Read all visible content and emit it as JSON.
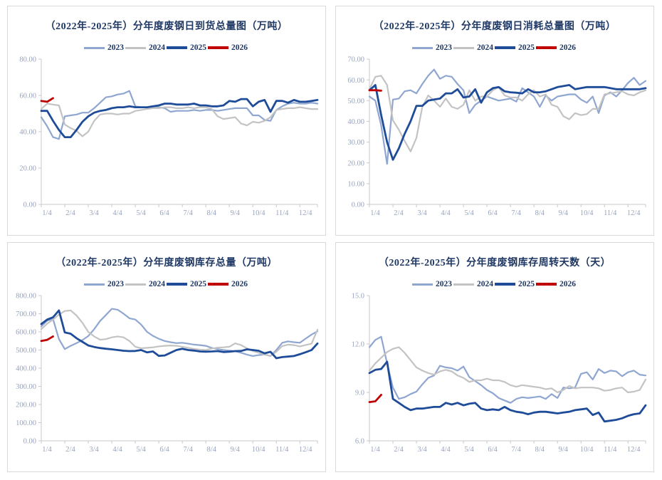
{
  "palette": {
    "title_text": "#1F3864",
    "axis_text": "#97A3BC",
    "axis_line": "#C9C9C9",
    "panel_border": "#D9D9D9",
    "series_2023": "#8FA6D1",
    "series_2024": "#C3C3C3",
    "series_2025": "#1F4C99",
    "series_2026": "#C00000"
  },
  "chart_data": [
    {
      "type": "line",
      "title": "（2022年-2025年）分年度废钢日到货总量图（万吨）",
      "xlabel": "",
      "ylabel": "",
      "x_tick_labels": [
        "1/4",
        "2/4",
        "3/4",
        "4/4",
        "5/4",
        "6/4",
        "7/4",
        "8/4",
        "9/4",
        "10/4",
        "11/4",
        "12/4"
      ],
      "points_per_month": 4,
      "ylim": [
        0,
        80
      ],
      "yticks": [
        0,
        20,
        40,
        60,
        80
      ],
      "tick_decimals": 2,
      "grid": false,
      "legend_position": "top",
      "series": [
        {
          "name": "2023",
          "color": "#8FA6D1",
          "width": 2.2,
          "values": [
            48,
            43,
            37,
            36,
            48.5,
            49,
            49.5,
            50.5,
            50.5,
            53,
            56,
            59,
            59.5,
            60.5,
            61,
            62.5,
            54,
            53.5,
            53.5,
            53.5,
            53.5,
            53,
            51,
            51.5,
            51.5,
            51.5,
            52,
            51.5,
            52,
            52,
            51.5,
            52,
            52.5,
            53,
            53,
            53,
            49,
            49,
            46.5,
            46,
            52,
            54,
            55.5,
            56,
            55.5,
            55.5,
            56,
            55.5
          ]
        },
        {
          "name": "2024",
          "color": "#C3C3C3",
          "width": 2.2,
          "values": [
            52.5,
            55.5,
            55,
            54.5,
            44,
            42,
            40.5,
            37.5,
            40,
            46,
            49.5,
            50,
            50,
            49.5,
            50,
            50,
            51.5,
            52,
            52.5,
            53,
            53,
            53.5,
            53.5,
            53,
            53,
            53.5,
            53,
            53.5,
            53.5,
            52.5,
            48.5,
            47,
            47.5,
            48,
            44.5,
            43.5,
            45.5,
            45,
            46,
            48,
            52,
            52.5,
            53,
            53,
            53.5,
            53,
            52.5,
            52.5
          ]
        },
        {
          "name": "2025",
          "color": "#1F4C99",
          "width": 2.8,
          "values": [
            51.5,
            51.5,
            46,
            41,
            37,
            37,
            41,
            45.5,
            48.5,
            50.5,
            51.5,
            52,
            53,
            53.5,
            53.5,
            54,
            53.5,
            53.5,
            53.5,
            54,
            54.5,
            55.5,
            55.5,
            55,
            55,
            55,
            55.5,
            54.5,
            54.5,
            54,
            54,
            54.5,
            57,
            56.5,
            58,
            58,
            54,
            56.5,
            57.5,
            51,
            57,
            57,
            56,
            57.5,
            56.5,
            56.5,
            57,
            57.5
          ]
        },
        {
          "name": "2026",
          "color": "#C00000",
          "width": 2.8,
          "values": [
            57,
            56.5,
            58.5
          ]
        }
      ]
    },
    {
      "type": "line",
      "title": "（2022年-2025年）分年度废钢日消耗总量图（万吨）",
      "xlabel": "",
      "ylabel": "",
      "x_tick_labels": [
        "1/4",
        "2/4",
        "3/4",
        "4/4",
        "5/4",
        "6/4",
        "7/4",
        "8/4",
        "9/4",
        "10/4",
        "11/4",
        "12/4"
      ],
      "points_per_month": 4,
      "ylim": [
        0,
        70
      ],
      "yticks": [
        0,
        10,
        20,
        30,
        40,
        50,
        60,
        70
      ],
      "tick_decimals": 2,
      "grid": false,
      "legend_position": "top",
      "series": [
        {
          "name": "2023",
          "color": "#8FA6D1",
          "width": 2.2,
          "values": [
            52,
            50,
            38,
            19.5,
            50.5,
            51,
            54.5,
            55,
            53.5,
            58,
            62,
            65,
            60.5,
            62,
            61.5,
            58,
            55,
            44,
            48,
            50,
            52,
            51,
            50,
            50.5,
            51,
            49.5,
            56,
            54,
            52,
            47,
            52.5,
            50,
            52,
            52.5,
            53,
            53,
            50.5,
            49,
            52,
            44,
            52.5,
            54,
            52,
            55,
            58.5,
            61,
            57.5,
            59.5
          ]
        },
        {
          "name": "2024",
          "color": "#C3C3C3",
          "width": 2.2,
          "values": [
            55.5,
            61.5,
            62,
            57.5,
            40.5,
            36,
            30.5,
            25.5,
            32,
            47,
            52.5,
            50,
            47,
            51,
            47,
            46,
            48,
            55,
            50,
            52,
            52,
            55,
            56.5,
            52.5,
            51.5,
            51.5,
            50,
            53,
            55,
            52,
            53,
            48,
            47,
            42.5,
            41,
            44,
            43,
            43.5,
            46,
            46,
            53,
            53.5,
            54,
            54.5,
            53,
            52.5,
            54,
            55
          ]
        },
        {
          "name": "2025",
          "color": "#1F4C99",
          "width": 2.8,
          "values": [
            55,
            57.5,
            43,
            30,
            21.5,
            27,
            34,
            40,
            47.5,
            47.5,
            50,
            50.5,
            51,
            53.5,
            53.5,
            55.5,
            51.5,
            52,
            55.5,
            49,
            54,
            56,
            56.5,
            54.5,
            54,
            53.8,
            53.5,
            55.5,
            54,
            54,
            54.5,
            55.5,
            56.5,
            57,
            57.5,
            55.5,
            56,
            56.5,
            56.5,
            56.5,
            56.5,
            56,
            55.5,
            55.5,
            55.5,
            55.5,
            55.5,
            56
          ]
        },
        {
          "name": "2026",
          "color": "#C00000",
          "width": 2.8,
          "values": [
            55,
            55,
            54.8
          ]
        }
      ]
    },
    {
      "type": "line",
      "title": "（2022年-2025年）分年度废钢库存总量（万吨）",
      "xlabel": "",
      "ylabel": "",
      "x_tick_labels": [
        "1/4",
        "2/4",
        "3/4",
        "4/4",
        "5/4",
        "6/4",
        "7/4",
        "8/4",
        "9/4",
        "10/4",
        "11/4",
        "12/4"
      ],
      "points_per_month": 4,
      "ylim": [
        0,
        800
      ],
      "yticks": [
        0,
        100,
        200,
        300,
        400,
        500,
        600,
        700,
        800
      ],
      "tick_decimals": 2,
      "grid": false,
      "legend_position": "top",
      "series": [
        {
          "name": "2023",
          "color": "#8FA6D1",
          "width": 2.2,
          "values": [
            630,
            662,
            670,
            560,
            505,
            523,
            538,
            555,
            577,
            615,
            660,
            693,
            727,
            722,
            700,
            675,
            668,
            640,
            600,
            578,
            562,
            550,
            543,
            538,
            540,
            535,
            530,
            527,
            523,
            512,
            505,
            500,
            497,
            493,
            485,
            475,
            467,
            472,
            476,
            467,
            500,
            540,
            548,
            543,
            540,
            563,
            585,
            603
          ]
        },
        {
          "name": "2024",
          "color": "#C3C3C3",
          "width": 2.2,
          "values": [
            615,
            645,
            668,
            695,
            715,
            718,
            690,
            650,
            600,
            575,
            557,
            560,
            570,
            575,
            570,
            550,
            518,
            510,
            512,
            515,
            520,
            523,
            525,
            523,
            518,
            512,
            506,
            502,
            500,
            508,
            513,
            515,
            518,
            537,
            527,
            510,
            495,
            485,
            475,
            468,
            490,
            522,
            530,
            527,
            520,
            528,
            535,
            612
          ]
        },
        {
          "name": "2025",
          "color": "#1F4C99",
          "width": 2.8,
          "values": [
            643,
            668,
            680,
            718,
            597,
            590,
            565,
            545,
            525,
            517,
            511,
            507,
            504,
            500,
            496,
            494,
            495,
            500,
            487,
            492,
            468,
            470,
            485,
            500,
            507,
            500,
            497,
            492,
            491,
            492,
            494,
            489,
            491,
            494,
            495,
            504,
            500,
            496,
            482,
            490,
            455,
            461,
            464,
            467,
            477,
            488,
            500,
            536
          ]
        },
        {
          "name": "2026",
          "color": "#C00000",
          "width": 2.8,
          "values": [
            550,
            556,
            575
          ]
        }
      ]
    },
    {
      "type": "line",
      "title": "（2022年-2025年）分年度废钢库存周转天数（天）",
      "xlabel": "",
      "ylabel": "",
      "x_tick_labels": [
        "1/4",
        "2/4",
        "3/4",
        "4/4",
        "5/4",
        "6/4",
        "7/4",
        "8/4",
        "9/4",
        "10/4",
        "11/4",
        "12/4"
      ],
      "points_per_month": 4,
      "ylim": [
        6,
        15
      ],
      "yticks": [
        6,
        9,
        12,
        15
      ],
      "tick_decimals": 1,
      "grid": false,
      "legend_position": "top",
      "series": [
        {
          "name": "2023",
          "color": "#8FA6D1",
          "width": 2.2,
          "values": [
            11.8,
            12.25,
            12.45,
            10.8,
            9.3,
            8.6,
            8.7,
            8.9,
            9.05,
            9.5,
            9.9,
            10.05,
            10.65,
            10.55,
            10.5,
            10.35,
            10.6,
            9.95,
            9.7,
            9.45,
            9.15,
            8.95,
            8.65,
            8.5,
            8.35,
            8.6,
            8.7,
            8.65,
            8.7,
            8.75,
            8.6,
            8.9,
            8.65,
            9.3,
            9.25,
            9.3,
            10.15,
            10.25,
            9.8,
            10.45,
            10.2,
            10.35,
            10.3,
            10.0,
            10.25,
            10.35,
            10.1,
            10.05
          ]
        },
        {
          "name": "2024",
          "color": "#C3C3C3",
          "width": 2.2,
          "values": [
            10.35,
            10.8,
            11.15,
            11.5,
            11.7,
            11.8,
            11.45,
            11.0,
            10.55,
            10.35,
            10.2,
            10.1,
            10.3,
            10.4,
            10.3,
            10.05,
            9.9,
            9.65,
            9.75,
            9.75,
            9.85,
            9.75,
            9.75,
            9.65,
            9.45,
            9.35,
            9.45,
            9.4,
            9.35,
            9.3,
            9.2,
            9.25,
            9.0,
            9.15,
            9.4,
            9.25,
            9.3,
            9.3,
            9.3,
            9.25,
            9.1,
            9.15,
            9.25,
            9.3,
            9.0,
            9.05,
            9.15,
            9.8
          ]
        },
        {
          "name": "2025",
          "color": "#1F4C99",
          "width": 2.8,
          "values": [
            10.2,
            10.4,
            10.45,
            10.9,
            8.6,
            8.35,
            8.1,
            7.9,
            8.0,
            8.0,
            8.05,
            8.1,
            8.1,
            8.35,
            8.25,
            8.35,
            8.2,
            8.3,
            8.35,
            8.0,
            7.9,
            7.95,
            7.9,
            8.1,
            7.9,
            7.8,
            7.75,
            7.65,
            7.75,
            7.8,
            7.8,
            7.75,
            7.7,
            7.75,
            7.8,
            7.9,
            7.95,
            8.0,
            7.6,
            7.75,
            7.2,
            7.25,
            7.3,
            7.4,
            7.55,
            7.65,
            7.7,
            8.2
          ]
        },
        {
          "name": "2026",
          "color": "#C00000",
          "width": 2.8,
          "values": [
            8.4,
            8.45,
            8.85
          ]
        }
      ]
    }
  ]
}
